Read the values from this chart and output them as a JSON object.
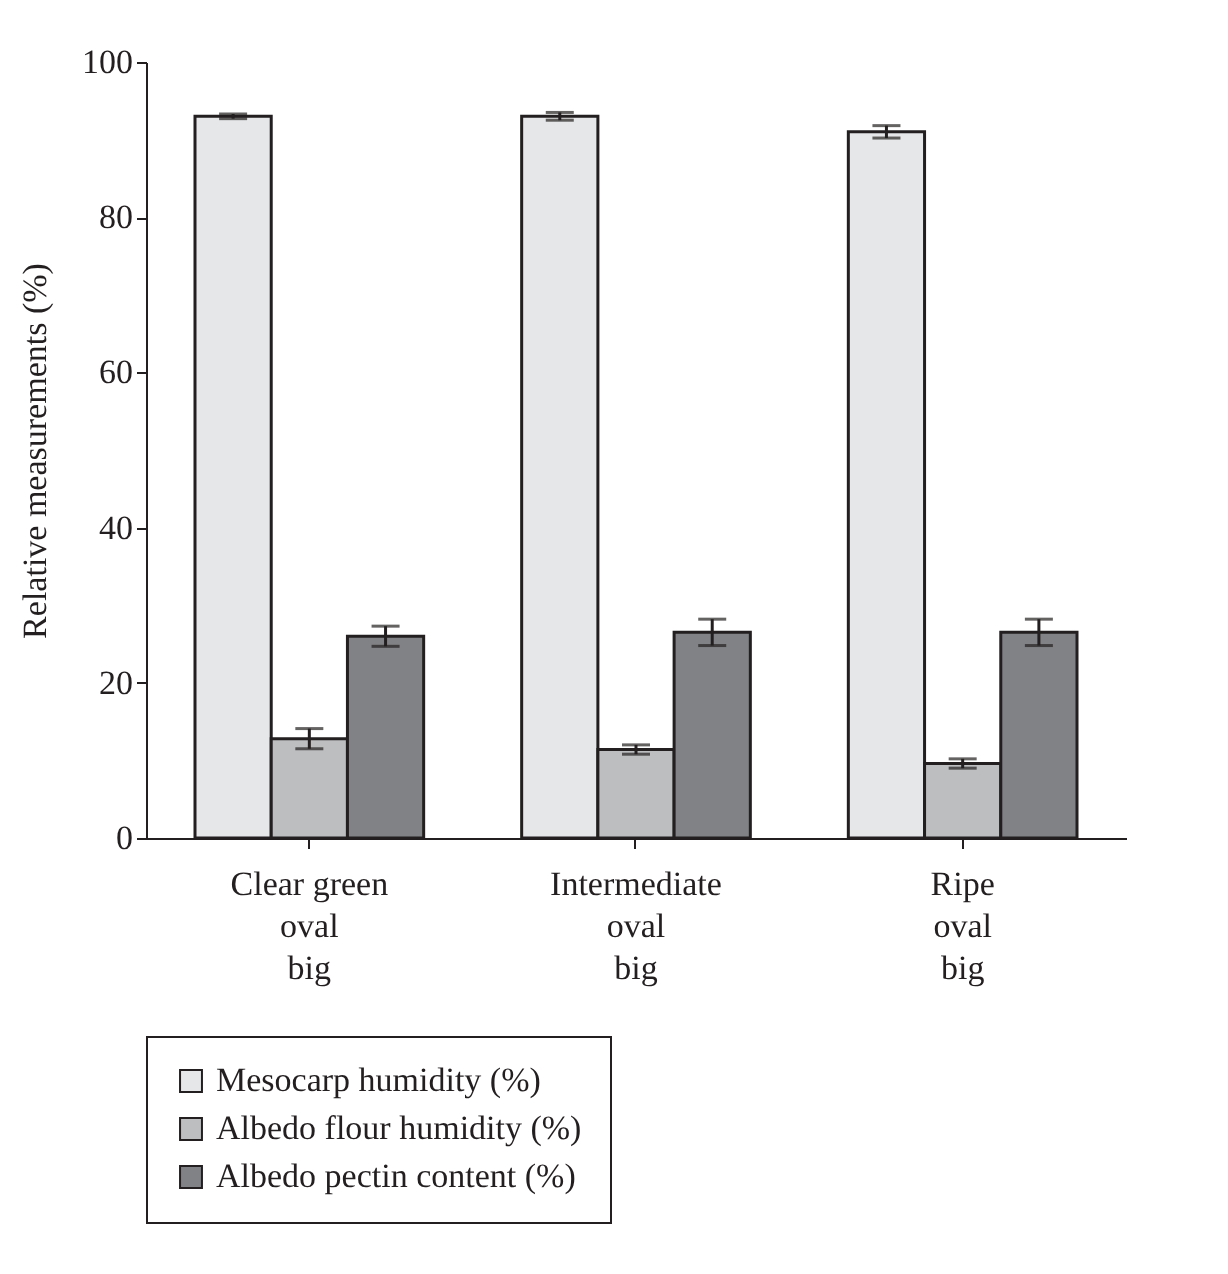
{
  "chart_data": {
    "type": "bar",
    "ylabel": "Relative measurements (%)",
    "categories": [
      "Clear green\noval\nbig",
      "Intermediate\noval\nbig",
      "Ripe\noval\nbig"
    ],
    "series": [
      {
        "name": "Mesocarp humidity (%)",
        "color": "#e6e7e8",
        "values": [
          93,
          93,
          91
        ],
        "errors": [
          0.3,
          0.5,
          0.8
        ]
      },
      {
        "name": "Albedo flour humidity (%)",
        "color": "#bcbec0",
        "values": [
          12.8,
          11.4,
          9.6
        ],
        "errors": [
          1.3,
          0.6,
          0.6
        ]
      },
      {
        "name": "Albedo pectin content (%)",
        "color": "#808285",
        "values": [
          26,
          26.5,
          26.5
        ],
        "errors": [
          1.3,
          1.7,
          1.7
        ]
      }
    ],
    "ylim": [
      0,
      100
    ],
    "yticks": [
      0,
      20,
      40,
      60,
      80,
      100
    ],
    "legend": "bottom"
  }
}
